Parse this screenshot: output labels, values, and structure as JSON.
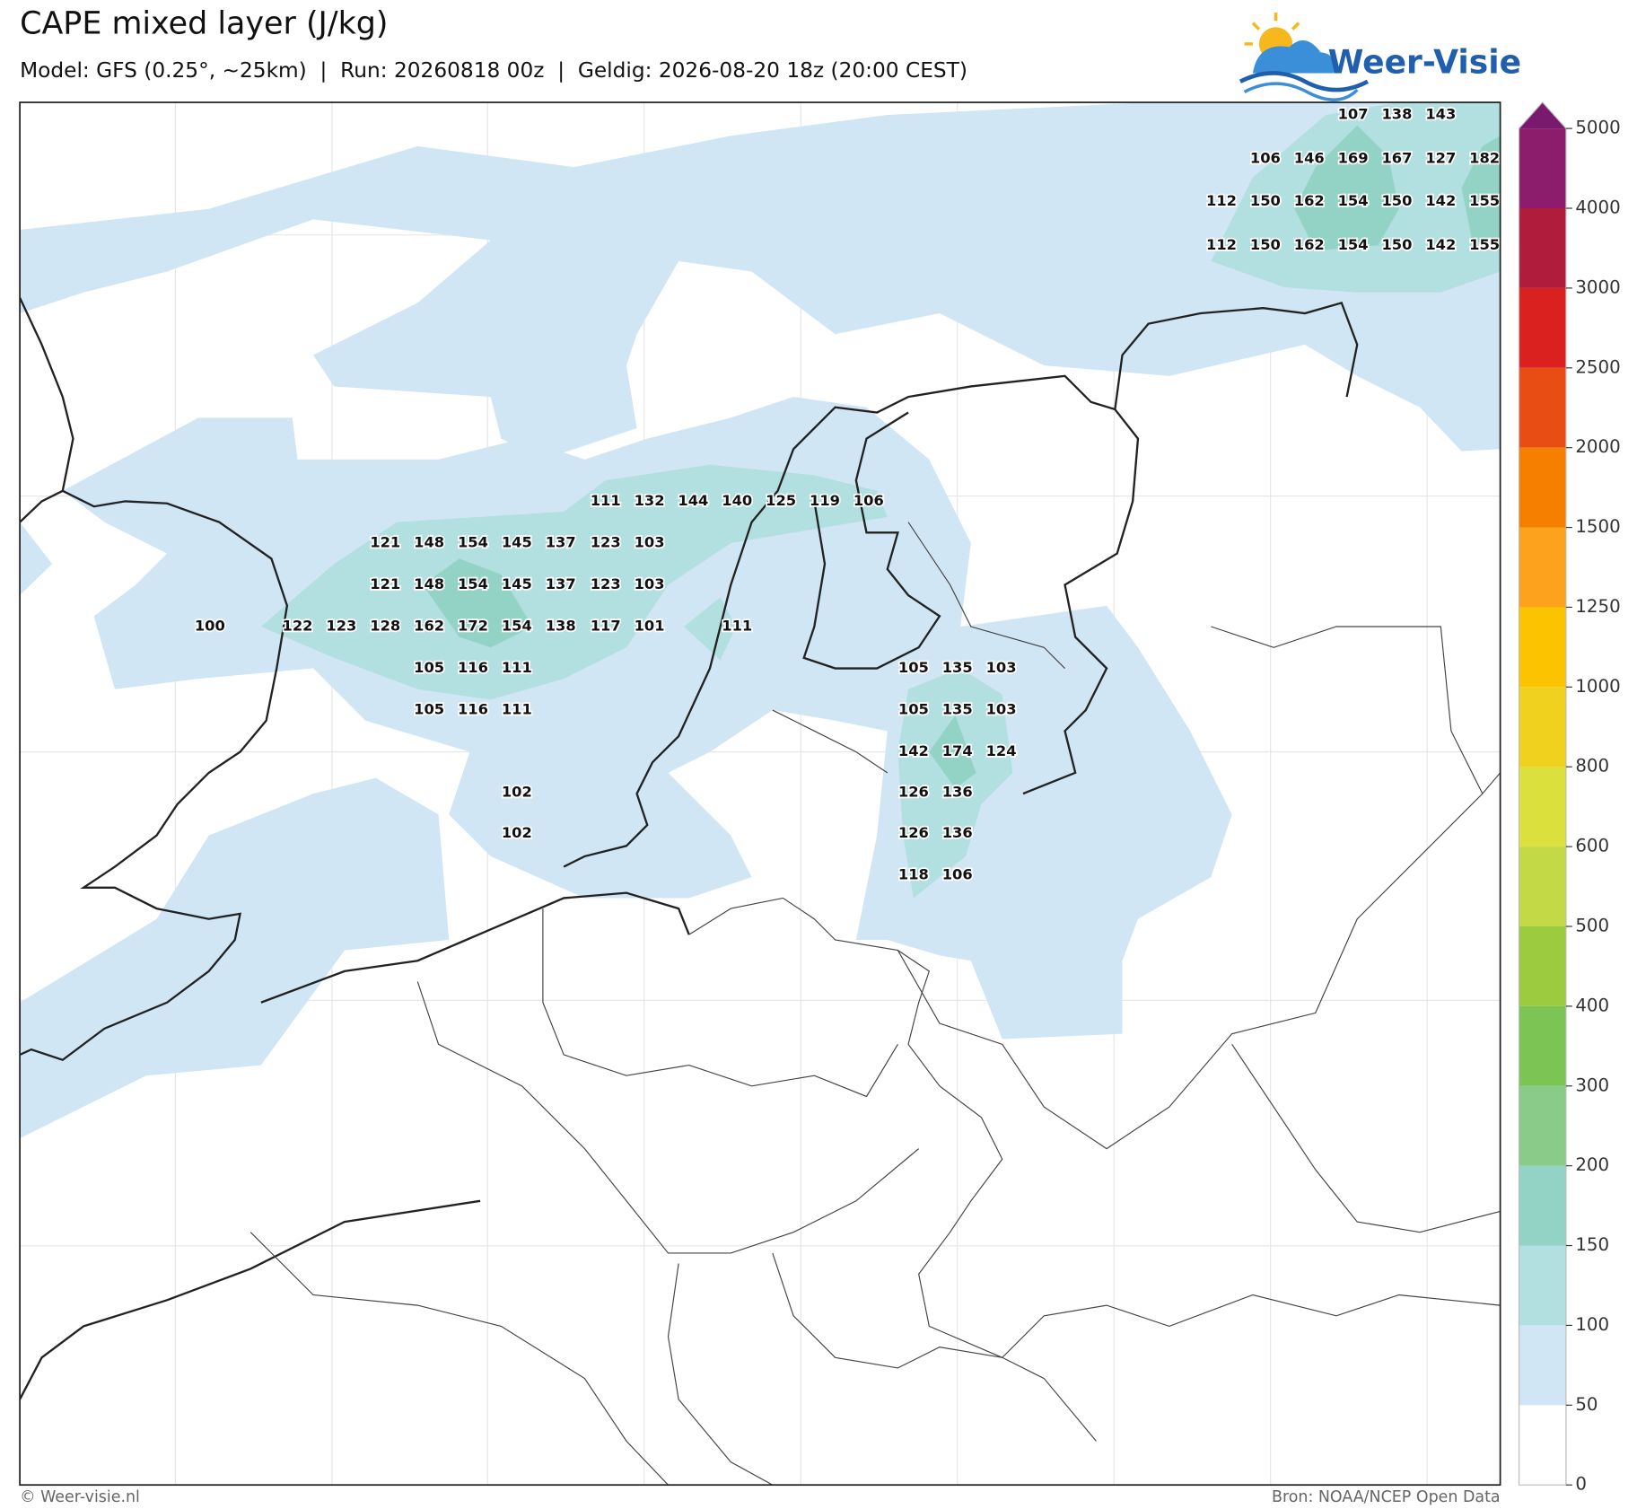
{
  "header": {
    "title": "CAPE mixed layer (J/kg)",
    "subtitle": "Model: GFS (0.25°, ~25km)  |  Run: 20260818 00z  |  Geldig: 2026-08-20 18z (20:00 CEST)",
    "logo": "Weer-Visie"
  },
  "map": {
    "point_values": [
      107,
      138,
      143,
      106,
      146,
      169,
      167,
      127,
      182,
      112,
      150,
      162,
      154,
      150,
      142,
      155,
      112,
      150,
      162,
      154,
      150,
      142,
      155,
      111,
      132,
      144,
      140,
      125,
      119,
      106,
      121,
      148,
      154,
      145,
      137,
      123,
      103,
      121,
      148,
      154,
      145,
      137,
      123,
      103,
      100,
      122,
      123,
      128,
      162,
      172,
      154,
      138,
      117,
      101,
      111,
      105,
      116,
      111,
      105,
      135,
      103,
      105,
      116,
      111,
      105,
      135,
      103,
      142,
      174,
      124,
      102,
      126,
      136,
      102,
      126,
      136,
      118,
      106
    ]
  },
  "colorbar": {
    "levels": [
      0,
      50,
      100,
      150,
      200,
      300,
      400,
      500,
      600,
      800,
      1000,
      1250,
      1500,
      2000,
      2500,
      3000,
      4000,
      5000
    ],
    "colors": [
      "#ffffff",
      "#d0e6f5",
      "#b2dfdf",
      "#93d3c6",
      "#8acb8a",
      "#7cc454",
      "#9ccb40",
      "#c3da46",
      "#dbe03c",
      "#f0d21e",
      "#fcc400",
      "#fca21c",
      "#f77f00",
      "#e84d14",
      "#db2020",
      "#b01c3c",
      "#8c1c6c"
    ],
    "extend_color": "#7a1a6e"
  },
  "footer": {
    "left": "© Weer-visie.nl",
    "right": "Bron: NOAA/NCEP Open Data"
  }
}
